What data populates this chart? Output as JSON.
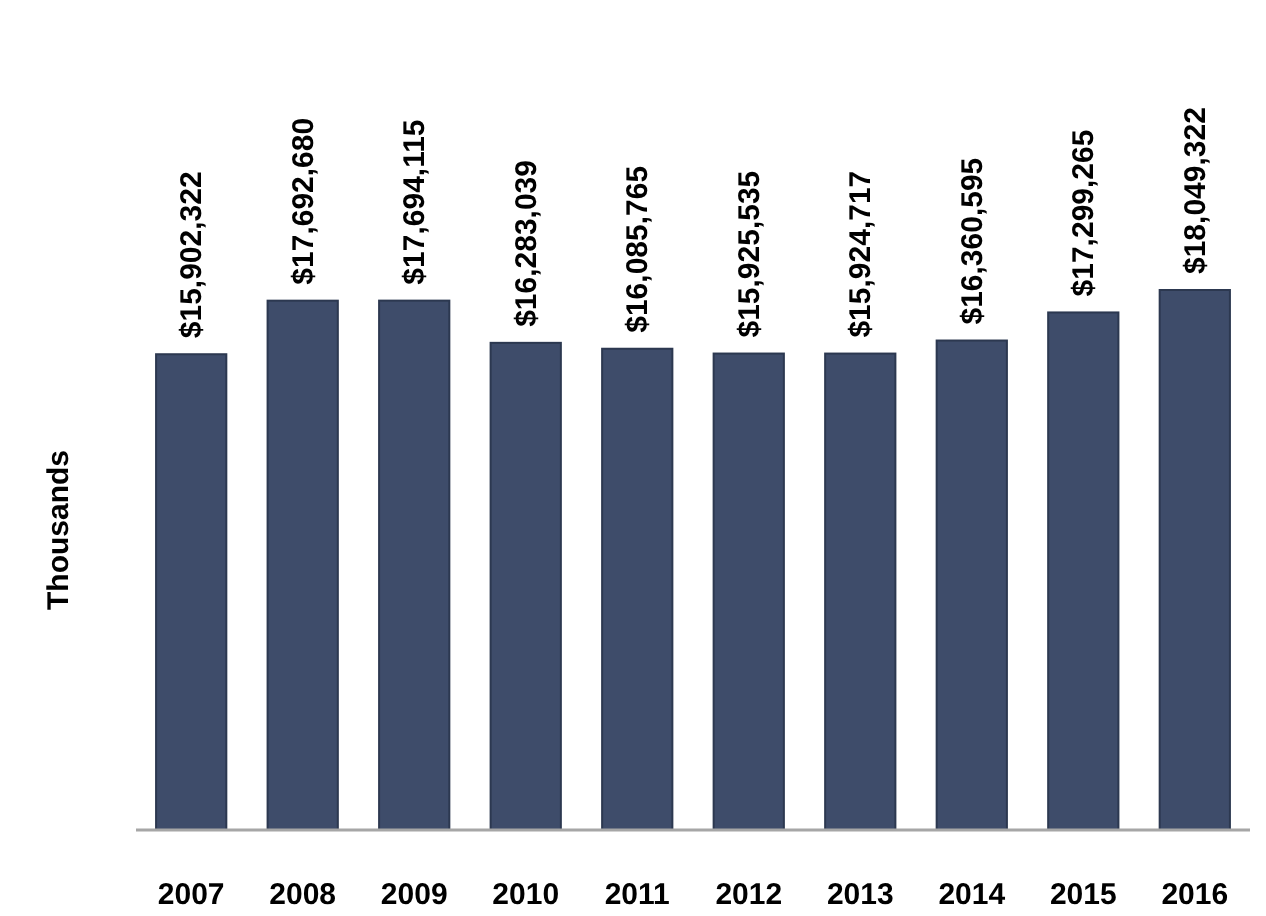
{
  "chart_data": {
    "type": "bar",
    "ylabel": "Thousands",
    "categories": [
      "2007",
      "2008",
      "2009",
      "2010",
      "2011",
      "2012",
      "2013",
      "2014",
      "2015",
      "2016"
    ],
    "values": [
      15902322,
      17692680,
      17694115,
      16283039,
      16085765,
      15925535,
      15924717,
      16360595,
      17299265,
      18049322
    ],
    "value_labels": [
      "$15,902,322",
      "$17,692,680",
      "$17,694,115",
      "$16,283,039",
      "$16,085,765",
      "$15,925,535",
      "$15,924,717",
      "$16,360,595",
      "$17,299,265",
      "$18,049,322"
    ],
    "color": "#3e4c6a"
  }
}
